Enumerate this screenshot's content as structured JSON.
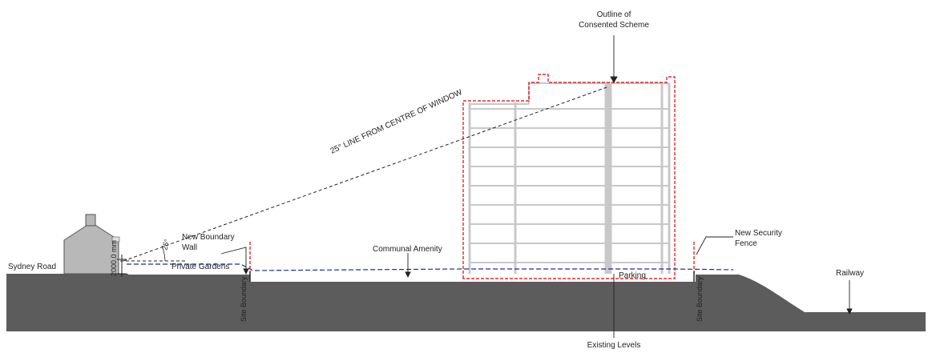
{
  "labels": {
    "outline_line1": "Outline of",
    "outline_line2": "Consented Scheme",
    "sight_line": "25° LINE FROM CENTRE OF WINDOW",
    "new_boundary_wall_line1": "New Boundary",
    "new_boundary_wall_line2": "Wall",
    "new_security_fence_line1": "New Security",
    "new_security_fence_line2": "Fence",
    "communal_amenity": "Communal Amenity",
    "sydney_road": "Sydney Road",
    "private_gardens": "Private Gardens",
    "dimension": "2000.0 mm",
    "angle": "25°",
    "site_boundary_left": "Site Boundary",
    "site_boundary_right": "Site Boundary",
    "parking": "Parking",
    "railway": "Railway",
    "existing_levels": "Existing Levels"
  },
  "colors": {
    "ground": "#5c5c5c",
    "house": "#b8b8b8",
    "building_lines": "#c8c8c8",
    "consented_outline": "#e00000",
    "existing_levels": "#1a2f8a",
    "annotation": "#1a1a1a"
  }
}
